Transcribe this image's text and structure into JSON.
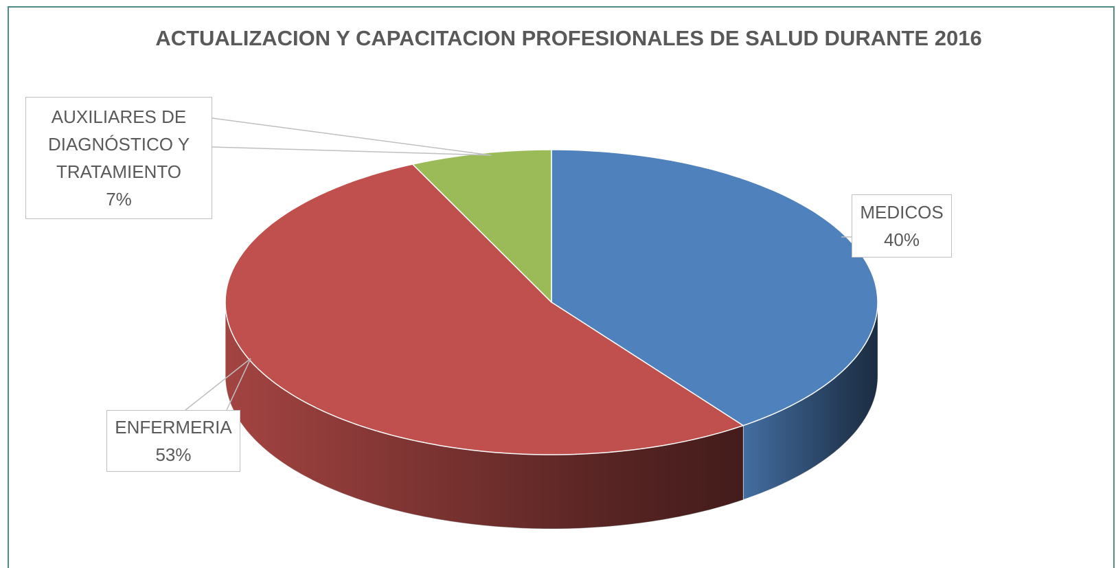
{
  "chart_data": {
    "type": "pie",
    "title": "ACTUALIZACION Y CAPACITACION PROFESIONALES DE SALUD DURANTE 2016",
    "categories": [
      "MEDICOS",
      "ENFERMERIA",
      "AUXILIARES DE DIAGNÓSTICO Y TRATAMIENTO"
    ],
    "values": [
      40,
      53,
      7
    ],
    "value_labels": [
      "40%",
      "53%",
      "7%"
    ],
    "colors": [
      "#4f81bd",
      "#c0504d",
      "#9bbb59"
    ]
  }
}
